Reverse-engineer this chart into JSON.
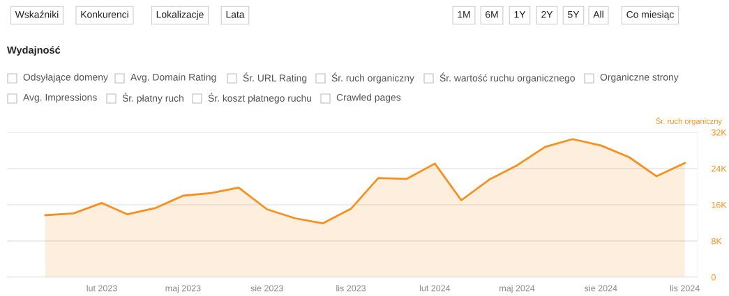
{
  "chart_data": {
    "type": "area",
    "title": "Wydajność",
    "ylabel": "Śr. ruch organiczny",
    "annotations": [
      "Wskaźniki",
      "Konkurenci",
      "Lokalizacje",
      "Lata",
      "1M",
      "6M",
      "1Y",
      "2Y",
      "5Y",
      "All",
      "Co miesiąc",
      "Odsyłające domeny",
      "Avg. Domain Rating",
      "Śr. URL Rating",
      "Śr. ruch organiczny",
      "Śr. wartość ruchu organicznego",
      "Organiczne strony",
      "Avg. Impressions",
      "Śr. płatny ruch",
      "Śr. koszt płatnego ruchu",
      "Crawled pages"
    ],
    "x": [
      "2022-12",
      "2023-01",
      "2023-02",
      "2023-03",
      "2023-04",
      "2023-05",
      "2023-06",
      "2023-07",
      "2023-08",
      "2023-09",
      "2023-10",
      "2023-11",
      "2023-12",
      "2024-01",
      "2024-02",
      "2024-03",
      "2024-04",
      "2024-05",
      "2024-06",
      "2024-07",
      "2024-08",
      "2024-09",
      "2024-10",
      "2024-11"
    ],
    "series": [
      {
        "color": "#f7901e",
        "values": [
          13700,
          14100,
          16400,
          13900,
          15300,
          18000,
          18600,
          19800,
          15000,
          13000,
          11900,
          15100,
          21900,
          21700,
          25100,
          17000,
          21600,
          24700,
          28800,
          30500,
          29100,
          26500,
          22300,
          25200
        ]
      }
    ],
    "xlim": [
      "2022-10-20",
      "2024-11-15"
    ],
    "xticks": [
      {
        "value": "2023-02",
        "label": "lut 2023"
      },
      {
        "value": "2023-05",
        "label": "maj 2023"
      },
      {
        "value": "2023-08",
        "label": "sie 2023"
      },
      {
        "value": "2023-11",
        "label": "lis 2023"
      },
      {
        "value": "2024-02",
        "label": "lut 2024"
      },
      {
        "value": "2024-05",
        "label": "maj 2024"
      },
      {
        "value": "2024-08",
        "label": "sie 2024"
      },
      {
        "value": "2024-11",
        "label": "lis 2024"
      }
    ],
    "ylim": [
      0,
      32000
    ],
    "yticks": [
      0,
      {
        "value": 8000,
        "label": "8K"
      },
      {
        "value": 16000,
        "label": "16K"
      },
      {
        "value": 24000,
        "label": "24K"
      },
      {
        "value": 32000,
        "label": "32K"
      }
    ],
    "grid": "y",
    "legend": false
  }
}
